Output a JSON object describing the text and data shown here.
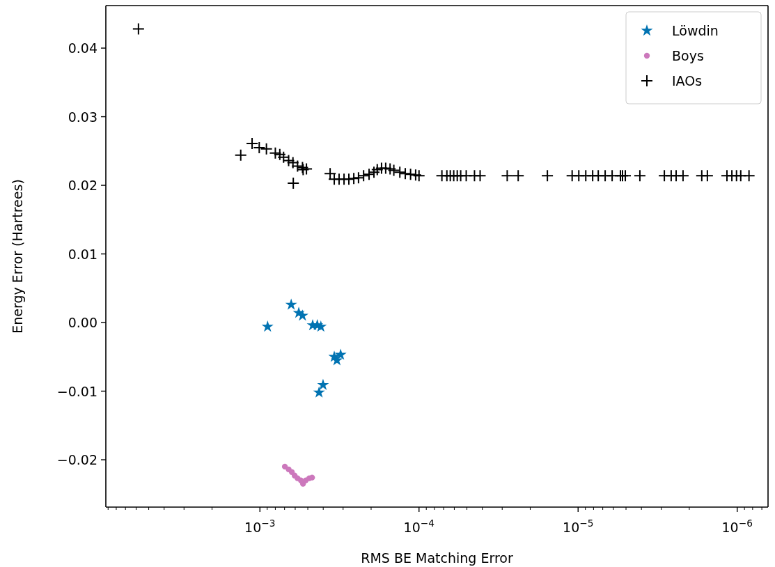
{
  "chart_data": {
    "type": "scatter",
    "xlabel": "RMS BE Matching Error",
    "ylabel": "Energy Error (Hartrees)",
    "log": "x",
    "xlim": [
      0.0093,
      6.4e-07
    ],
    "ylim": [
      -0.0269,
      0.0462
    ],
    "xticks": [
      {
        "value": 0.009,
        "label": null
      },
      {
        "value": 0.008,
        "label": null
      },
      {
        "value": 0.007,
        "label": null
      },
      {
        "value": 0.006,
        "label": null
      },
      {
        "value": 0.005,
        "label": null
      },
      {
        "value": 0.004,
        "label": null
      },
      {
        "value": 0.003,
        "label": null
      },
      {
        "value": 0.002,
        "label": null
      },
      {
        "value": 0.001,
        "label": "10$^{−3}$"
      },
      {
        "value": 0.0009,
        "label": null
      },
      {
        "value": 0.0008,
        "label": null
      },
      {
        "value": 0.0007,
        "label": null
      },
      {
        "value": 0.0006,
        "label": null
      },
      {
        "value": 0.0005,
        "label": null
      },
      {
        "value": 0.0004,
        "label": null
      },
      {
        "value": 0.0003,
        "label": null
      },
      {
        "value": 0.0002,
        "label": null
      },
      {
        "value": 0.0001,
        "label": "10$^{−4}$"
      },
      {
        "value": 9e-05,
        "label": null
      },
      {
        "value": 8e-05,
        "label": null
      },
      {
        "value": 7e-05,
        "label": null
      },
      {
        "value": 6e-05,
        "label": null
      },
      {
        "value": 5e-05,
        "label": null
      },
      {
        "value": 4e-05,
        "label": null
      },
      {
        "value": 3e-05,
        "label": null
      },
      {
        "value": 2e-05,
        "label": null
      },
      {
        "value": 1e-05,
        "label": "10$^{−5}$"
      },
      {
        "value": 9e-06,
        "label": null
      },
      {
        "value": 8e-06,
        "label": null
      },
      {
        "value": 7e-06,
        "label": null
      },
      {
        "value": 6e-06,
        "label": null
      },
      {
        "value": 5e-06,
        "label": null
      },
      {
        "value": 4e-06,
        "label": null
      },
      {
        "value": 3e-06,
        "label": null
      },
      {
        "value": 2e-06,
        "label": null
      },
      {
        "value": 1e-06,
        "label": "10$^{−6}$"
      },
      {
        "value": 9e-07,
        "label": null
      },
      {
        "value": 8e-07,
        "label": null
      },
      {
        "value": 7e-07,
        "label": null
      }
    ],
    "yticks": [
      {
        "value": -0.02,
        "label": "−0.02"
      },
      {
        "value": -0.01,
        "label": "−0.01"
      },
      {
        "value": 0,
        "label": "0.00"
      },
      {
        "value": 0.01,
        "label": "0.01"
      },
      {
        "value": 0.02,
        "label": "0.02"
      },
      {
        "value": 0.03,
        "label": "0.03"
      },
      {
        "value": 0.04,
        "label": "0.04"
      }
    ],
    "legend": "top right",
    "grid": false,
    "series": [
      {
        "name": "Löwdin",
        "color": "#0173b2",
        "marker": "star",
        "x": [
          0.000895,
          0.000636,
          0.00057,
          0.00054,
          0.000466,
          0.000436,
          0.000414,
          0.000341,
          0.000311,
          0.000328,
          0.000401,
          0.000425
        ],
        "values": [
          -0.0006,
          0.0026,
          0.0014,
          0.001,
          -0.0004,
          -0.0004,
          -0.0006,
          -0.005,
          -0.0047,
          -0.0055,
          -0.0091,
          -0.0102
        ]
      },
      {
        "name": "Boys",
        "color": "#cc78bc",
        "marker": "circle",
        "x": [
          0.000697,
          0.00066,
          0.00063,
          0.000605,
          0.00058,
          0.000553,
          0.000536,
          0.000515,
          0.00049,
          0.00047
        ],
        "values": [
          -0.021,
          -0.0214,
          -0.0218,
          -0.0223,
          -0.0227,
          -0.023,
          -0.0235,
          -0.023,
          -0.0227,
          -0.0226
        ]
      },
      {
        "name": "IAOs",
        "color": "#000000",
        "marker": "cross",
        "x": [
          0.0058,
          0.00132,
          0.00112,
          0.00101,
          0.00091,
          0.0008,
          0.00075,
          0.00071,
          0.00066,
          0.00062,
          0.00058,
          0.00054,
          0.00051,
          0.000617,
          0.000535,
          0.000362,
          0.000341,
          0.000318,
          0.000296,
          0.000276,
          0.000257,
          0.00024,
          0.000223,
          0.000206,
          0.000192,
          0.000183,
          0.000172,
          0.000162,
          0.000152,
          0.000144,
          0.000132,
          0.000122,
          0.000113,
          0.000105,
          0.0001,
          7.18e-05,
          6.68e-05,
          6.36e-05,
          6.05e-05,
          5.75e-05,
          5.47e-05,
          5.05e-05,
          4.48e-05,
          4.13e-05,
          2.79e-05,
          2.38e-05,
          1.56e-05,
          1.09e-05,
          9.9e-06,
          8.95e-06,
          8.1e-06,
          7.47e-06,
          6.76e-06,
          6.11e-06,
          5.42e-06,
          5.26e-06,
          5.05e-06,
          4.09e-06,
          2.87e-06,
          2.6e-06,
          2.42e-06,
          2.19e-06,
          1.67e-06,
          1.54e-06,
          1.16e-06,
          1.08e-06,
          1.01e-06,
          9.5e-07,
          8.43e-07
        ],
        "values": [
          0.0428,
          0.0244,
          0.0261,
          0.0255,
          0.0253,
          0.0247,
          0.0245,
          0.0241,
          0.0236,
          0.0233,
          0.0228,
          0.0226,
          0.0224,
          0.0203,
          0.0223,
          0.0217,
          0.0209,
          0.0209,
          0.0209,
          0.0209,
          0.021,
          0.0211,
          0.0214,
          0.0216,
          0.0219,
          0.0223,
          0.0225,
          0.0225,
          0.0224,
          0.0222,
          0.0219,
          0.0217,
          0.0216,
          0.0215,
          0.0214,
          0.0214,
          0.0214,
          0.0214,
          0.0214,
          0.0214,
          0.0214,
          0.0214,
          0.0214,
          0.0214,
          0.0214,
          0.0214,
          0.0214,
          0.0214,
          0.0214,
          0.0214,
          0.0214,
          0.0214,
          0.0214,
          0.0214,
          0.0214,
          0.0214,
          0.0214,
          0.0214,
          0.0214,
          0.0214,
          0.0214,
          0.0214,
          0.0214,
          0.0214,
          0.0214,
          0.0214,
          0.0214,
          0.0214,
          0.0214
        ]
      }
    ]
  }
}
